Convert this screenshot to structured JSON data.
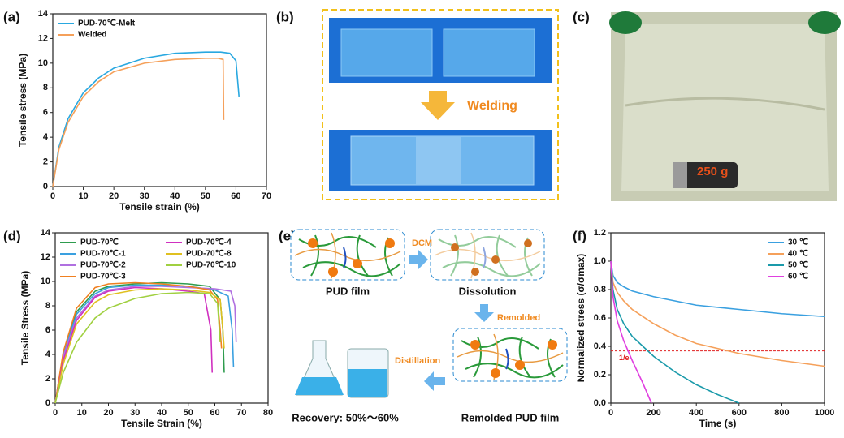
{
  "chart_data": [
    {
      "type": "line",
      "xlabel": "Tensile strain (%)",
      "ylabel": "Tensile stress (MPa)",
      "xlim": [
        0,
        70
      ],
      "xticks": [
        0,
        10,
        20,
        30,
        40,
        50,
        60,
        70
      ],
      "ylim": [
        0,
        14
      ],
      "yticks": [
        0,
        2,
        4,
        6,
        8,
        10,
        12,
        14
      ],
      "legend": "upper left",
      "series": [
        {
          "name": "PUD-70℃-Melt",
          "color": "#29a8e0",
          "x": [
            0,
            2,
            5,
            10,
            15,
            20,
            30,
            40,
            50,
            55,
            58,
            60,
            61
          ],
          "values": [
            0,
            3.2,
            5.5,
            7.6,
            8.8,
            9.6,
            10.4,
            10.8,
            10.9,
            10.9,
            10.8,
            10.2,
            7.3
          ]
        },
        {
          "name": "Welded",
          "color": "#f5a05a",
          "x": [
            0,
            2,
            5,
            10,
            15,
            20,
            30,
            40,
            50,
            54,
            55.8,
            56
          ],
          "values": [
            0,
            3,
            5.2,
            7.3,
            8.5,
            9.3,
            10.0,
            10.3,
            10.4,
            10.4,
            10.3,
            5.4
          ]
        }
      ]
    },
    {
      "type": "line",
      "xlabel": "Tensile Strain (%)",
      "ylabel": "Tensile Stress (MPa)",
      "xlim": [
        0,
        80
      ],
      "xticks": [
        0,
        10,
        20,
        30,
        40,
        50,
        60,
        70,
        80
      ],
      "ylim": [
        0,
        14
      ],
      "yticks": [
        0,
        2,
        4,
        6,
        8,
        10,
        12,
        14
      ],
      "legend": "upper left",
      "series": [
        {
          "name": "PUD-70℃",
          "color": "#2e9c4e",
          "x": [
            0,
            3,
            8,
            15,
            20,
            30,
            40,
            50,
            58,
            62,
            63,
            63.5
          ],
          "values": [
            0,
            4,
            7.5,
            9.2,
            9.6,
            9.8,
            9.9,
            9.8,
            9.6,
            8.5,
            6,
            2.5
          ]
        },
        {
          "name": "PUD-70℃-1",
          "color": "#3aa0e0",
          "x": [
            0,
            3,
            8,
            15,
            20,
            30,
            40,
            50,
            60,
            65,
            66.5,
            67
          ],
          "values": [
            0,
            4,
            7.3,
            9.0,
            9.5,
            9.7,
            9.7,
            9.6,
            9.3,
            8.8,
            6,
            3
          ]
        },
        {
          "name": "PUD-70℃-2",
          "color": "#b070e0",
          "x": [
            0,
            3,
            8,
            15,
            20,
            30,
            40,
            50,
            60,
            66,
            67.5,
            68
          ],
          "values": [
            0,
            3.8,
            7,
            8.8,
            9.3,
            9.6,
            9.6,
            9.5,
            9.4,
            9.2,
            8,
            5
          ]
        },
        {
          "name": "PUD-70℃-3",
          "color": "#f08020",
          "x": [
            0,
            3,
            8,
            15,
            20,
            30,
            40,
            50,
            58,
            61,
            62,
            62.5
          ],
          "values": [
            0,
            4.2,
            7.8,
            9.5,
            9.8,
            9.9,
            9.8,
            9.6,
            9.3,
            8.5,
            6,
            4.5
          ]
        },
        {
          "name": "PUD-70℃-4",
          "color": "#d030c0",
          "x": [
            0,
            3,
            8,
            15,
            20,
            30,
            40,
            50,
            56,
            58.5,
            59
          ],
          "values": [
            0,
            3.5,
            6.8,
            8.7,
            9.2,
            9.5,
            9.4,
            9.2,
            9.0,
            6,
            2.5
          ]
        },
        {
          "name": "PUD-70℃-8",
          "color": "#e0c020",
          "x": [
            0,
            3,
            8,
            15,
            20,
            30,
            40,
            50,
            58,
            62,
            63,
            63.5
          ],
          "values": [
            0,
            3.2,
            6.5,
            8.3,
            8.9,
            9.3,
            9.4,
            9.3,
            9.1,
            8.5,
            6,
            4.5
          ]
        },
        {
          "name": "PUD-70℃-10",
          "color": "#a0d040",
          "x": [
            0,
            3,
            8,
            15,
            20,
            30,
            40,
            50,
            58,
            61,
            62
          ],
          "values": [
            0,
            2.5,
            5,
            7,
            7.8,
            8.6,
            9.0,
            9.1,
            9.0,
            8.2,
            5
          ]
        }
      ]
    },
    {
      "type": "line",
      "xlabel": "Time (s)",
      "ylabel": "Normalized stress (σ/σmax)",
      "xlim": [
        0,
        1000
      ],
      "xticks": [
        0,
        200,
        400,
        600,
        800,
        1000
      ],
      "ylim": [
        0,
        1.2
      ],
      "yticks": [
        {
          "value": 0,
          "label": "0.0"
        },
        0.2,
        0.4,
        0.6,
        0.8,
        {
          "value": 1,
          "label": "1.0"
        },
        1.2
      ],
      "legend": "upper right",
      "hline": {
        "value": 0.368,
        "label": "1/e",
        "color": "#e02020"
      },
      "series": [
        {
          "name": "30 ℃",
          "color": "#3aa0e0",
          "x": [
            0,
            10,
            30,
            60,
            100,
            200,
            300,
            400,
            600,
            800,
            1000
          ],
          "values": [
            1,
            0.9,
            0.85,
            0.82,
            0.79,
            0.75,
            0.72,
            0.69,
            0.66,
            0.63,
            0.61
          ]
        },
        {
          "name": "40 ℃",
          "color": "#f5a05a",
          "x": [
            0,
            10,
            30,
            60,
            100,
            200,
            300,
            400,
            600,
            800,
            1000
          ],
          "values": [
            1,
            0.85,
            0.78,
            0.72,
            0.66,
            0.56,
            0.48,
            0.42,
            0.35,
            0.3,
            0.26
          ]
        },
        {
          "name": "50 ℃",
          "color": "#1a9aaa",
          "x": [
            0,
            10,
            30,
            60,
            100,
            200,
            300,
            400,
            500,
            600
          ],
          "values": [
            1,
            0.8,
            0.66,
            0.56,
            0.47,
            0.33,
            0.22,
            0.13,
            0.06,
            0
          ]
        },
        {
          "name": "60 ℃",
          "color": "#e040e0",
          "x": [
            0,
            10,
            30,
            60,
            100,
            150,
            190
          ],
          "values": [
            1,
            0.75,
            0.58,
            0.44,
            0.3,
            0.14,
            0
          ]
        }
      ]
    }
  ],
  "figure": {
    "panel_labels": [
      "(a)",
      "(b)",
      "(c)",
      "(d)",
      "(e)",
      "(f)"
    ],
    "b_label": "Welding",
    "c_label": "250 g",
    "e_labels": {
      "dcm": "DCM",
      "pud_film": "PUD film",
      "dissolution": "Dissolution",
      "remolded": "Remolded",
      "remolded_film": "Remolded PUD film",
      "distillation": "Distillation",
      "recovery": "Recovery: 50%～60%"
    }
  }
}
